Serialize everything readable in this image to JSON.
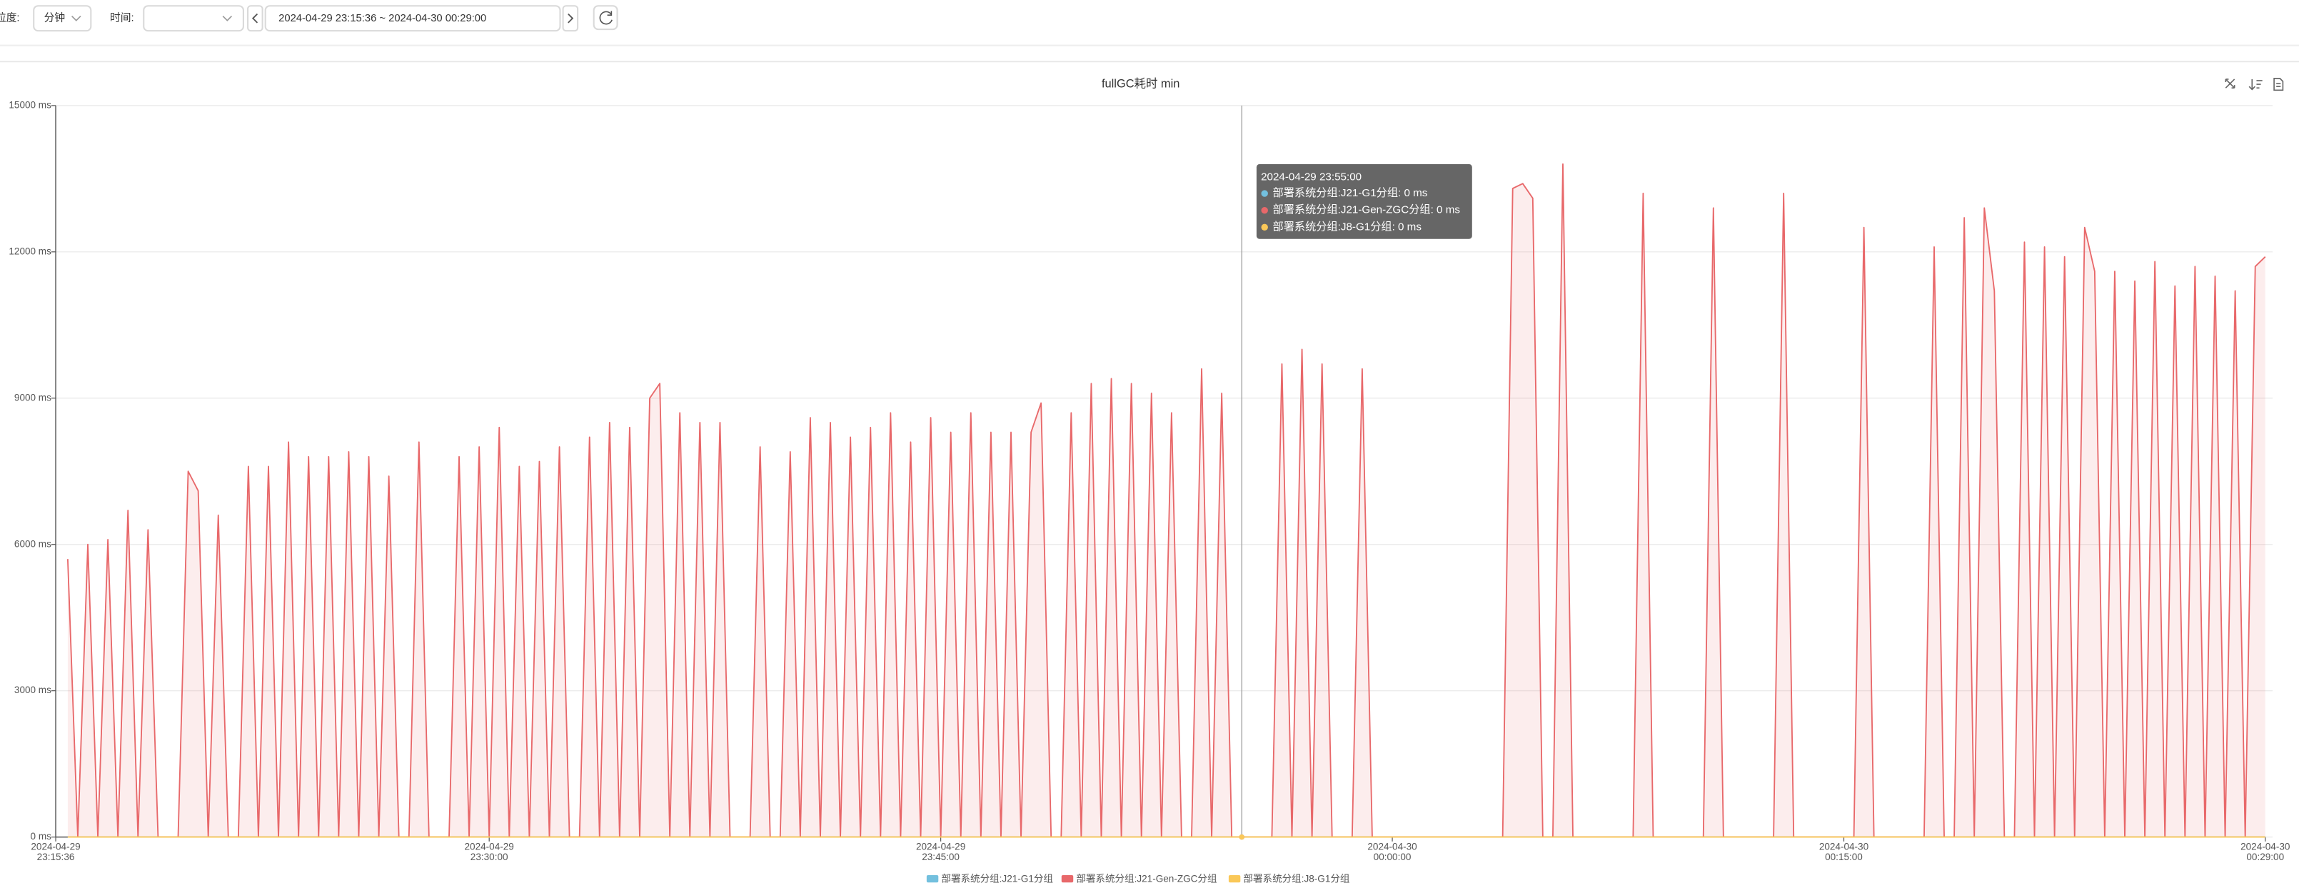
{
  "controls": {
    "granularity_label": "粒度:",
    "granularity": "分钟",
    "time_label": "时间:",
    "range": "2024-04-29 23:15:36 ~ 2024-04-30 00:29:00"
  },
  "chart_data": {
    "type": "line",
    "title": "fullGC耗时 min",
    "grid": true,
    "xlim": [
      "2024-04-29 23:15:36",
      "2024-04-30 00:29:00"
    ],
    "xticks": [
      {
        "value": "2024-04-29 23:15:36",
        "label": [
          "2024-04-29",
          "23:15:36"
        ]
      },
      {
        "value": "2024-04-29 23:30:00",
        "label": [
          "2024-04-29",
          "23:30:00"
        ]
      },
      {
        "value": "2024-04-29 23:45:00",
        "label": [
          "2024-04-29",
          "23:45:00"
        ]
      },
      {
        "value": "2024-04-30 00:00:00",
        "label": [
          "2024-04-30",
          "00:00:00"
        ]
      },
      {
        "value": "2024-04-30 00:15:00",
        "label": [
          "2024-04-30",
          "00:15:00"
        ]
      },
      {
        "value": "2024-04-30 00:29:00",
        "label": [
          "2024-04-30",
          "00:29:00"
        ]
      }
    ],
    "ylim": [
      0,
      15000
    ],
    "yticks": [
      {
        "value": 0,
        "label": "0 ms"
      },
      {
        "value": 3000,
        "label": "3000 ms"
      },
      {
        "value": 6000,
        "label": "6000 ms"
      },
      {
        "value": 9000,
        "label": "9000 ms"
      },
      {
        "value": 12000,
        "label": "12000 ms"
      },
      {
        "value": 15000,
        "label": "15000 ms"
      }
    ],
    "x": [
      "2024-04-29 23:16:00",
      "2024-04-29 23:16:20",
      "2024-04-29 23:16:40",
      "2024-04-29 23:17:00",
      "2024-04-29 23:17:20",
      "2024-04-29 23:17:40",
      "2024-04-29 23:18:00",
      "2024-04-29 23:18:20",
      "2024-04-29 23:18:40",
      "2024-04-29 23:19:00",
      "2024-04-29 23:19:20",
      "2024-04-29 23:19:40",
      "2024-04-29 23:20:00",
      "2024-04-29 23:20:20",
      "2024-04-29 23:20:40",
      "2024-04-29 23:21:00",
      "2024-04-29 23:21:20",
      "2024-04-29 23:21:40",
      "2024-04-29 23:22:00",
      "2024-04-29 23:22:20",
      "2024-04-29 23:22:40",
      "2024-04-29 23:23:00",
      "2024-04-29 23:23:20",
      "2024-04-29 23:23:40",
      "2024-04-29 23:24:00",
      "2024-04-29 23:24:20",
      "2024-04-29 23:24:40",
      "2024-04-29 23:25:00",
      "2024-04-29 23:25:20",
      "2024-04-29 23:25:40",
      "2024-04-29 23:26:00",
      "2024-04-29 23:26:20",
      "2024-04-29 23:26:40",
      "2024-04-29 23:27:00",
      "2024-04-29 23:27:20",
      "2024-04-29 23:27:40",
      "2024-04-29 23:28:00",
      "2024-04-29 23:28:20",
      "2024-04-29 23:28:40",
      "2024-04-29 23:29:00",
      "2024-04-29 23:29:20",
      "2024-04-29 23:29:40",
      "2024-04-29 23:30:00",
      "2024-04-29 23:30:20",
      "2024-04-29 23:30:40",
      "2024-04-29 23:31:00",
      "2024-04-29 23:31:20",
      "2024-04-29 23:31:40",
      "2024-04-29 23:32:00",
      "2024-04-29 23:32:20",
      "2024-04-29 23:32:40",
      "2024-04-29 23:33:00",
      "2024-04-29 23:33:20",
      "2024-04-29 23:33:40",
      "2024-04-29 23:34:00",
      "2024-04-29 23:34:20",
      "2024-04-29 23:34:40",
      "2024-04-29 23:35:00",
      "2024-04-29 23:35:20",
      "2024-04-29 23:35:40",
      "2024-04-29 23:36:00",
      "2024-04-29 23:36:20",
      "2024-04-29 23:36:40",
      "2024-04-29 23:37:00",
      "2024-04-29 23:37:20",
      "2024-04-29 23:37:40",
      "2024-04-29 23:38:00",
      "2024-04-29 23:38:20",
      "2024-04-29 23:38:40",
      "2024-04-29 23:39:00",
      "2024-04-29 23:39:20",
      "2024-04-29 23:39:40",
      "2024-04-29 23:40:00",
      "2024-04-29 23:40:20",
      "2024-04-29 23:40:40",
      "2024-04-29 23:41:00",
      "2024-04-29 23:41:20",
      "2024-04-29 23:41:40",
      "2024-04-29 23:42:00",
      "2024-04-29 23:42:20",
      "2024-04-29 23:42:40",
      "2024-04-29 23:43:00",
      "2024-04-29 23:43:20",
      "2024-04-29 23:43:40",
      "2024-04-29 23:44:00",
      "2024-04-29 23:44:20",
      "2024-04-29 23:44:40",
      "2024-04-29 23:45:00",
      "2024-04-29 23:45:20",
      "2024-04-29 23:45:40",
      "2024-04-29 23:46:00",
      "2024-04-29 23:46:20",
      "2024-04-29 23:46:40",
      "2024-04-29 23:47:00",
      "2024-04-29 23:47:20",
      "2024-04-29 23:47:40",
      "2024-04-29 23:48:00",
      "2024-04-29 23:48:20",
      "2024-04-29 23:48:40",
      "2024-04-29 23:49:00",
      "2024-04-29 23:49:20",
      "2024-04-29 23:49:40",
      "2024-04-29 23:50:00",
      "2024-04-29 23:50:20",
      "2024-04-29 23:50:40",
      "2024-04-29 23:51:00",
      "2024-04-29 23:51:20",
      "2024-04-29 23:51:40",
      "2024-04-29 23:52:00",
      "2024-04-29 23:52:20",
      "2024-04-29 23:52:40",
      "2024-04-29 23:53:00",
      "2024-04-29 23:53:20",
      "2024-04-29 23:53:40",
      "2024-04-29 23:54:00",
      "2024-04-29 23:54:20",
      "2024-04-29 23:54:40",
      "2024-04-29 23:55:00",
      "2024-04-29 23:55:20",
      "2024-04-29 23:55:40",
      "2024-04-29 23:56:00",
      "2024-04-29 23:56:20",
      "2024-04-29 23:56:40",
      "2024-04-29 23:57:00",
      "2024-04-29 23:57:20",
      "2024-04-29 23:57:40",
      "2024-04-29 23:58:00",
      "2024-04-29 23:58:20",
      "2024-04-29 23:58:40",
      "2024-04-29 23:59:00",
      "2024-04-29 23:59:20",
      "2024-04-29 23:59:40",
      "2024-04-30 00:00:00",
      "2024-04-30 00:00:20",
      "2024-04-30 00:00:40",
      "2024-04-30 00:01:00",
      "2024-04-30 00:01:20",
      "2024-04-30 00:01:40",
      "2024-04-30 00:02:00",
      "2024-04-30 00:02:20",
      "2024-04-30 00:02:40",
      "2024-04-30 00:03:00",
      "2024-04-30 00:03:20",
      "2024-04-30 00:03:40",
      "2024-04-30 00:04:00",
      "2024-04-30 00:04:20",
      "2024-04-30 00:04:40",
      "2024-04-30 00:05:00",
      "2024-04-30 00:05:20",
      "2024-04-30 00:05:40",
      "2024-04-30 00:06:00",
      "2024-04-30 00:06:20",
      "2024-04-30 00:06:40",
      "2024-04-30 00:07:00",
      "2024-04-30 00:07:20",
      "2024-04-30 00:07:40",
      "2024-04-30 00:08:00",
      "2024-04-30 00:08:20",
      "2024-04-30 00:08:40",
      "2024-04-30 00:09:00",
      "2024-04-30 00:09:20",
      "2024-04-30 00:09:40",
      "2024-04-30 00:10:00",
      "2024-04-30 00:10:20",
      "2024-04-30 00:10:40",
      "2024-04-30 00:11:00",
      "2024-04-30 00:11:20",
      "2024-04-30 00:11:40",
      "2024-04-30 00:12:00",
      "2024-04-30 00:12:20",
      "2024-04-30 00:12:40",
      "2024-04-30 00:13:00",
      "2024-04-30 00:13:20",
      "2024-04-30 00:13:40",
      "2024-04-30 00:14:00",
      "2024-04-30 00:14:20",
      "2024-04-30 00:14:40",
      "2024-04-30 00:15:00",
      "2024-04-30 00:15:20",
      "2024-04-30 00:15:40",
      "2024-04-30 00:16:00",
      "2024-04-30 00:16:20",
      "2024-04-30 00:16:40",
      "2024-04-30 00:17:00",
      "2024-04-30 00:17:20",
      "2024-04-30 00:17:40",
      "2024-04-30 00:18:00",
      "2024-04-30 00:18:20",
      "2024-04-30 00:18:40",
      "2024-04-30 00:19:00",
      "2024-04-30 00:19:20",
      "2024-04-30 00:19:40",
      "2024-04-30 00:20:00",
      "2024-04-30 00:20:20",
      "2024-04-30 00:20:40",
      "2024-04-30 00:21:00",
      "2024-04-30 00:21:20",
      "2024-04-30 00:21:40",
      "2024-04-30 00:22:00",
      "2024-04-30 00:22:20",
      "2024-04-30 00:22:40",
      "2024-04-30 00:23:00",
      "2024-04-30 00:23:20",
      "2024-04-30 00:23:40",
      "2024-04-30 00:24:00",
      "2024-04-30 00:24:20",
      "2024-04-30 00:24:40",
      "2024-04-30 00:25:00",
      "2024-04-30 00:25:20",
      "2024-04-30 00:25:40",
      "2024-04-30 00:26:00",
      "2024-04-30 00:26:20",
      "2024-04-30 00:26:40",
      "2024-04-30 00:27:00",
      "2024-04-30 00:27:20",
      "2024-04-30 00:27:40",
      "2024-04-30 00:28:00",
      "2024-04-30 00:28:20",
      "2024-04-30 00:28:40",
      "2024-04-30 00:29:00"
    ],
    "series": [
      {
        "name": "部署系统分组:J21-G1分组",
        "color": "#73c0de",
        "values": [
          0,
          0,
          0,
          0,
          0,
          0,
          0,
          0,
          0,
          0,
          0,
          0,
          0,
          0,
          0,
          0,
          0,
          0,
          0,
          0,
          0,
          0,
          0,
          0,
          0,
          0,
          0,
          0,
          0,
          0,
          0,
          0,
          0,
          0,
          0,
          0,
          0,
          0,
          0,
          0,
          0,
          0,
          0,
          0,
          0,
          0,
          0,
          0,
          0,
          0,
          0,
          0,
          0,
          0,
          0,
          0,
          0,
          0,
          0,
          0,
          0,
          0,
          0,
          0,
          0,
          0,
          0,
          0,
          0,
          0,
          0,
          0,
          0,
          0,
          0,
          0,
          0,
          0,
          0,
          0,
          0,
          0,
          0,
          0,
          0,
          0,
          0,
          0,
          0,
          0,
          0,
          0,
          0,
          0,
          0,
          0,
          0,
          0,
          0,
          0,
          0,
          0,
          0,
          0,
          0,
          0,
          0,
          0,
          0,
          0,
          0,
          0,
          0,
          0,
          0,
          0,
          0,
          0,
          0,
          0,
          0,
          0,
          0,
          0,
          0,
          0,
          0,
          0,
          0,
          0,
          0,
          0,
          0,
          0,
          0,
          0,
          0,
          0,
          0,
          0,
          0,
          0,
          0,
          0,
          0,
          0,
          0,
          0,
          0,
          0,
          0,
          0,
          0,
          0,
          0,
          0,
          0,
          0,
          0,
          0,
          0,
          0,
          0,
          0,
          0,
          0,
          0,
          0,
          0,
          0,
          0,
          0,
          0,
          0,
          0,
          0,
          0,
          0,
          0,
          0,
          0,
          0,
          0,
          0,
          0,
          0,
          0,
          0,
          0,
          0,
          0,
          0,
          0,
          0,
          0,
          0,
          0,
          0,
          0,
          0,
          0,
          0,
          0,
          0,
          0,
          0,
          0,
          0,
          0,
          0,
          0,
          0,
          0,
          0,
          0,
          0,
          0,
          0,
          0,
          0
        ]
      },
      {
        "name": "部署系统分组:J21-Gen-ZGC分组",
        "color": "#e8686a",
        "values": [
          5700,
          0,
          6000,
          0,
          6100,
          0,
          6700,
          0,
          6300,
          0,
          0,
          0,
          7500,
          7100,
          0,
          6600,
          0,
          0,
          7600,
          0,
          7600,
          0,
          8100,
          0,
          7800,
          0,
          7800,
          0,
          7900,
          0,
          7800,
          0,
          7400,
          0,
          0,
          8100,
          0,
          0,
          0,
          7800,
          0,
          8000,
          0,
          8400,
          0,
          7600,
          0,
          7700,
          0,
          8000,
          0,
          0,
          8200,
          0,
          8500,
          0,
          8400,
          0,
          9000,
          9300,
          0,
          8700,
          0,
          8500,
          0,
          8500,
          0,
          0,
          0,
          8000,
          0,
          0,
          7900,
          0,
          8600,
          0,
          8500,
          0,
          8200,
          0,
          8400,
          0,
          8700,
          0,
          8100,
          0,
          8600,
          0,
          8300,
          0,
          8700,
          0,
          8300,
          0,
          8300,
          0,
          8300,
          8900,
          0,
          0,
          8700,
          0,
          9300,
          0,
          9400,
          0,
          9300,
          0,
          9100,
          0,
          8700,
          0,
          0,
          9600,
          0,
          9100,
          0,
          0,
          0,
          0,
          0,
          9700,
          0,
          10000,
          0,
          9700,
          0,
          0,
          0,
          9600,
          0,
          0,
          0,
          0,
          0,
          0,
          0,
          0,
          0,
          0,
          0,
          0,
          0,
          0,
          13300,
          13400,
          13100,
          0,
          0,
          13800,
          0,
          0,
          0,
          0,
          0,
          0,
          0,
          13200,
          0,
          0,
          0,
          0,
          0,
          0,
          12900,
          0,
          0,
          0,
          0,
          0,
          0,
          13200,
          0,
          0,
          0,
          0,
          0,
          0,
          0,
          12500,
          0,
          0,
          0,
          0,
          0,
          0,
          12100,
          0,
          0,
          12700,
          0,
          12900,
          11200,
          0,
          0,
          12200,
          0,
          12100,
          0,
          11900,
          0,
          12500,
          11600,
          0,
          11600,
          0,
          11400,
          0,
          11800,
          0,
          11300,
          0,
          11700,
          0,
          11500,
          0,
          11200,
          0,
          11700,
          11900
        ]
      },
      {
        "name": "部署系统分组:J8-G1分组",
        "color": "#fac858",
        "values": [
          0,
          0,
          0,
          0,
          0,
          0,
          0,
          0,
          0,
          0,
          0,
          0,
          0,
          0,
          0,
          0,
          0,
          0,
          0,
          0,
          0,
          0,
          0,
          0,
          0,
          0,
          0,
          0,
          0,
          0,
          0,
          0,
          0,
          0,
          0,
          0,
          0,
          0,
          0,
          0,
          0,
          0,
          0,
          0,
          0,
          0,
          0,
          0,
          0,
          0,
          0,
          0,
          0,
          0,
          0,
          0,
          0,
          0,
          0,
          0,
          0,
          0,
          0,
          0,
          0,
          0,
          0,
          0,
          0,
          0,
          0,
          0,
          0,
          0,
          0,
          0,
          0,
          0,
          0,
          0,
          0,
          0,
          0,
          0,
          0,
          0,
          0,
          0,
          0,
          0,
          0,
          0,
          0,
          0,
          0,
          0,
          0,
          0,
          0,
          0,
          0,
          0,
          0,
          0,
          0,
          0,
          0,
          0,
          0,
          0,
          0,
          0,
          0,
          0,
          0,
          0,
          0,
          0,
          0,
          0,
          0,
          0,
          0,
          0,
          0,
          0,
          0,
          0,
          0,
          0,
          0,
          0,
          0,
          0,
          0,
          0,
          0,
          0,
          0,
          0,
          0,
          0,
          0,
          0,
          0,
          0,
          0,
          0,
          0,
          0,
          0,
          0,
          0,
          0,
          0,
          0,
          0,
          0,
          0,
          0,
          0,
          0,
          0,
          0,
          0,
          0,
          0,
          0,
          0,
          0,
          0,
          0,
          0,
          0,
          0,
          0,
          0,
          0,
          0,
          0,
          0,
          0,
          0,
          0,
          0,
          0,
          0,
          0,
          0,
          0,
          0,
          0,
          0,
          0,
          0,
          0,
          0,
          0,
          0,
          0,
          0,
          0,
          0,
          0,
          0,
          0,
          0,
          0,
          0,
          0,
          0,
          0,
          0,
          0,
          0,
          0,
          0,
          0,
          0,
          0
        ]
      }
    ],
    "tooltip": {
      "title": "2024-04-29 23:55:00",
      "items": [
        "部署系统分组:J21-G1分组: 0 ms",
        "部署系统分组:J21-Gen-ZGC分组: 0 ms",
        "部署系统分组:J8-G1分组: 0 ms"
      ]
    }
  }
}
